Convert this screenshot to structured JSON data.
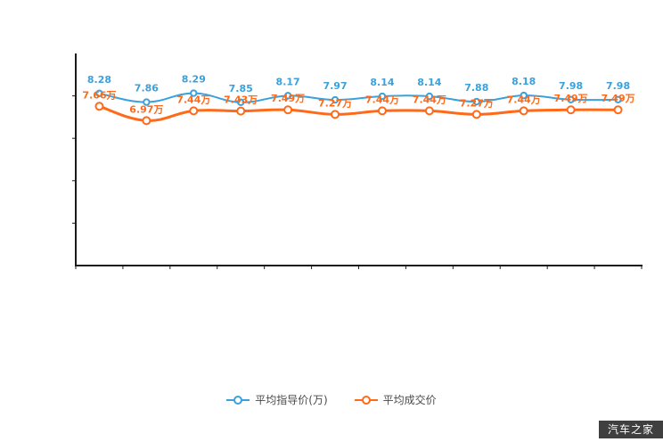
{
  "chart_data": {
    "type": "line",
    "title": "",
    "xlabel": "",
    "ylabel": "",
    "grid": false,
    "legend_position": "bottom",
    "ylim": [
      0,
      10.2
    ],
    "categories": [
      "",
      "",
      "",
      "",
      "",
      "",
      "",
      "",
      "",
      "",
      "",
      ""
    ],
    "series": [
      {
        "name": "平均指导价(万)",
        "color": "#3aa1dc",
        "values": [
          8.28,
          7.86,
          8.29,
          7.85,
          8.17,
          7.97,
          8.14,
          8.14,
          7.88,
          8.18,
          7.98,
          7.98
        ],
        "labels": [
          "8.28",
          "7.86",
          "8.29",
          "7.85",
          "8.17",
          "7.97",
          "8.14",
          "8.14",
          "7.88",
          "8.18",
          "7.98",
          "7.98"
        ]
      },
      {
        "name": "平均成交价",
        "color": "#ff6a1a",
        "values": [
          7.66,
          6.97,
          7.44,
          7.43,
          7.49,
          7.27,
          7.44,
          7.44,
          7.27,
          7.44,
          7.49,
          7.49
        ],
        "labels": [
          "7.66万",
          "6.97万",
          "7.44万",
          "7.43万",
          "7.49万",
          "7.27万",
          "7.44万",
          "7.44万",
          "7.27万",
          "7.44万",
          "7.49万",
          "7.49万"
        ]
      }
    ]
  },
  "legend": {
    "items": [
      {
        "label": "平均指导价(万)",
        "color": "#3aa1dc"
      },
      {
        "label": "平均成交价",
        "color": "#ff6a1a"
      }
    ]
  },
  "watermark": {
    "text": "汽车之家",
    "background": "#3f3f3f",
    "color": "#ffffff"
  },
  "colors": {
    "axis": "#1a1a1a",
    "background": "#ffffff",
    "legend_text": "#4a4a4a"
  }
}
